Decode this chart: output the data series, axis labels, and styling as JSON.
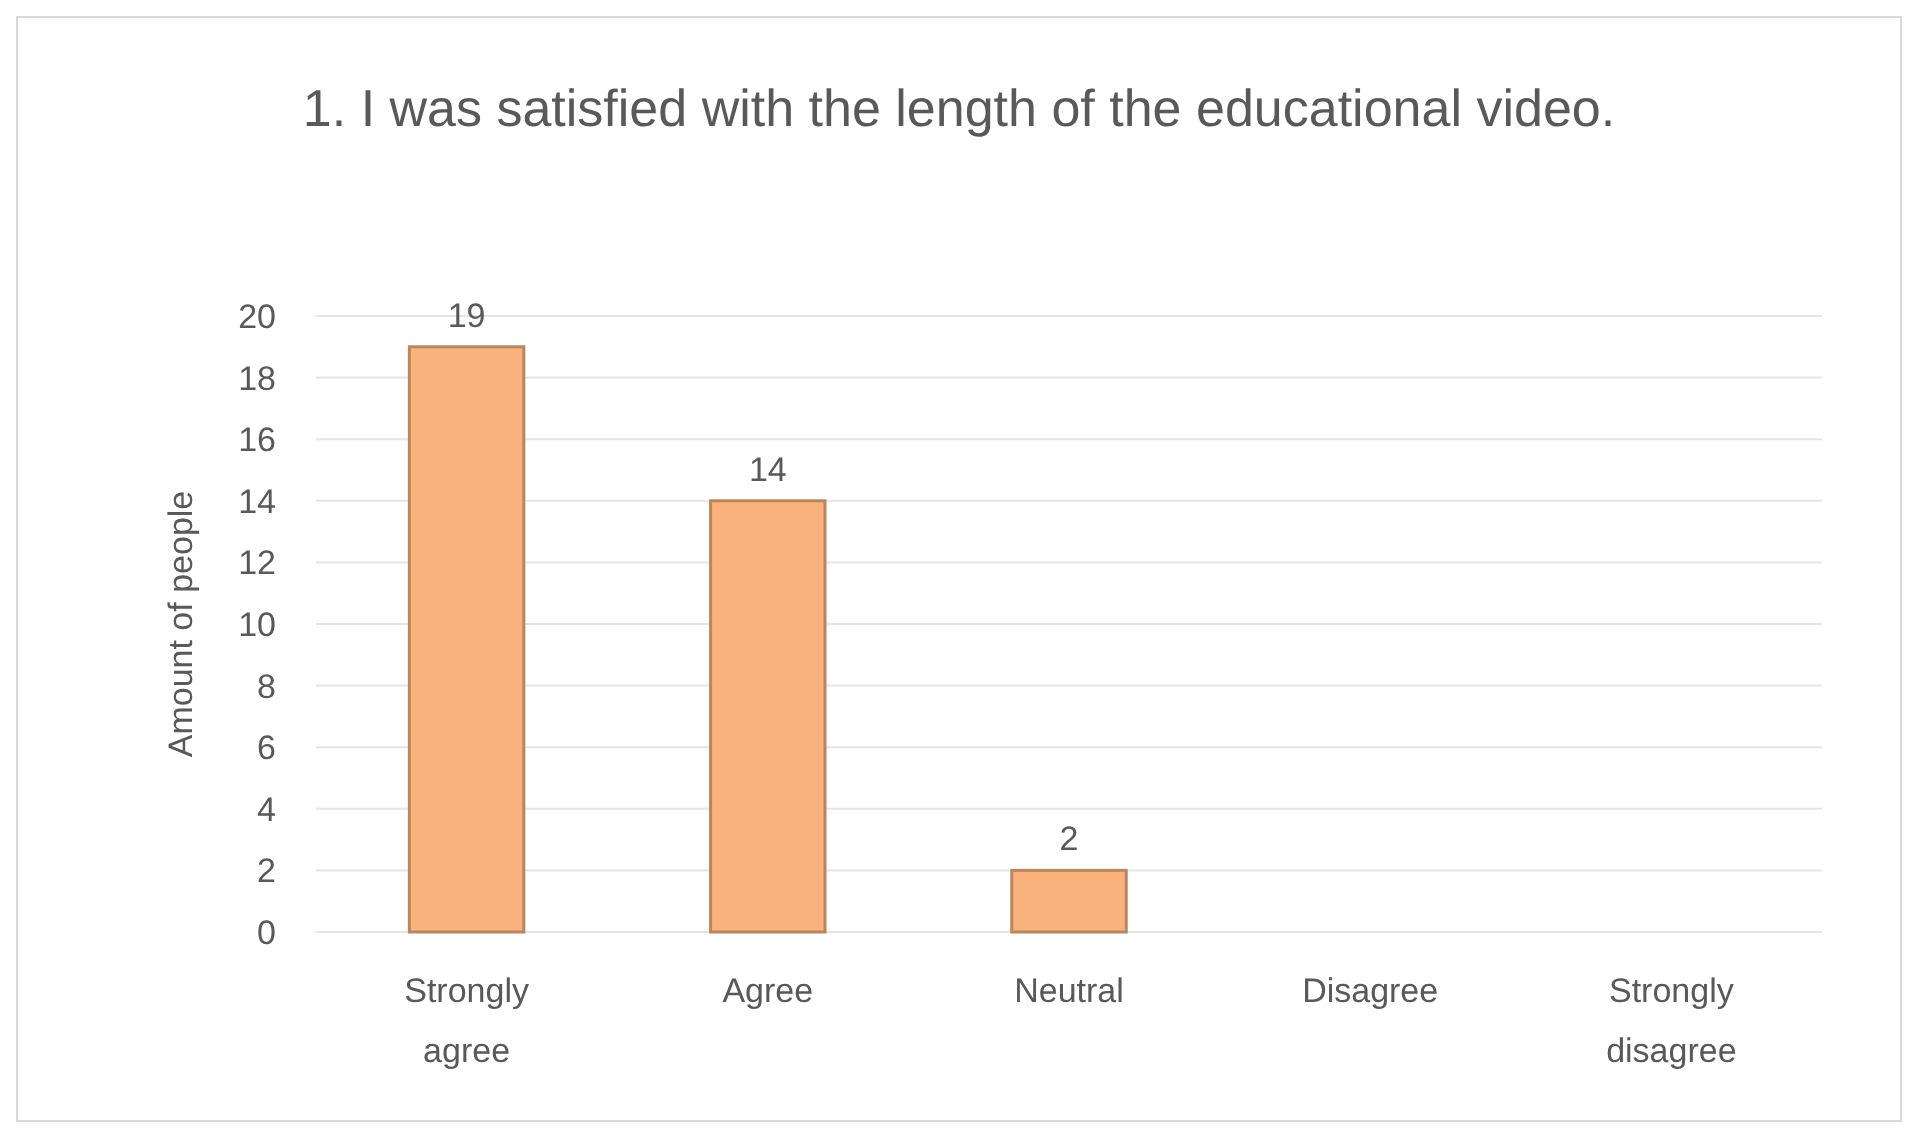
{
  "chart_data": {
    "type": "bar",
    "title": "1. I was satisfied with the length of the educational video.",
    "ylabel": "Amount of people",
    "categories": [
      "Strongly agree",
      "Agree",
      "Neutral",
      "Disagree",
      "Strongly disagree"
    ],
    "values": [
      19,
      14,
      2,
      0,
      0
    ],
    "value_labels": [
      "19",
      "14",
      "2",
      null,
      null
    ],
    "color": "#f9b27c",
    "ylim": [
      0,
      20
    ],
    "yticks": [
      0,
      2,
      4,
      6,
      8,
      10,
      12,
      14,
      16,
      18,
      20
    ],
    "grid": "y"
  }
}
